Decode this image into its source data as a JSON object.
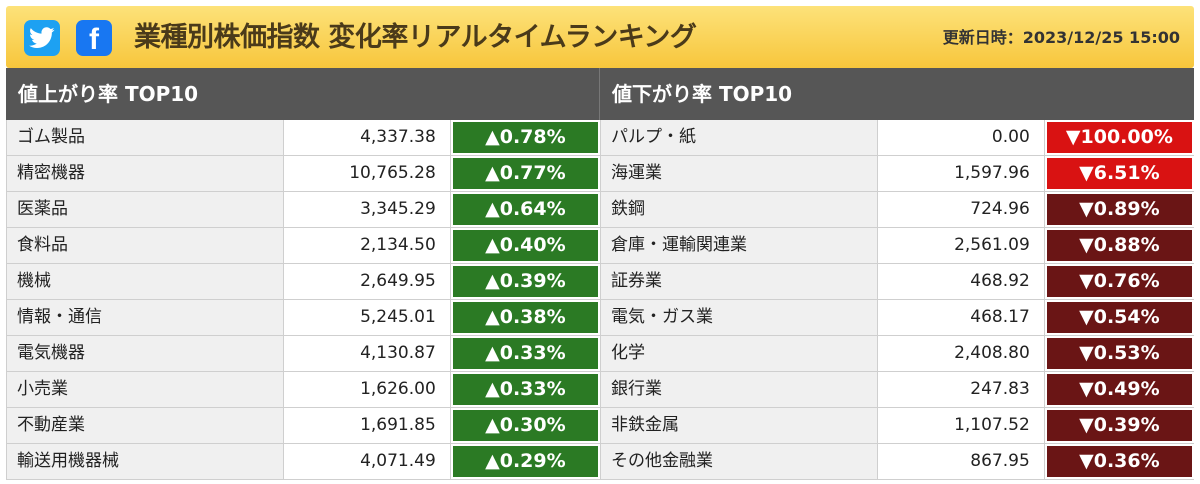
{
  "header": {
    "title": "業種別株価指数 変化率リアルタイムランキング",
    "updated": "更新日時：2023/12/25 15:00",
    "social": [
      "twitter-icon",
      "facebook-icon"
    ],
    "facebook_glyph": "f"
  },
  "gainers": {
    "title": "値上がり率 TOP10",
    "rows": [
      {
        "name": "ゴム製品",
        "value": "4,337.38",
        "change": "▲0.78%"
      },
      {
        "name": "精密機器",
        "value": "10,765.28",
        "change": "▲0.77%"
      },
      {
        "name": "医薬品",
        "value": "3,345.29",
        "change": "▲0.64%"
      },
      {
        "name": "食料品",
        "value": "2,134.50",
        "change": "▲0.40%"
      },
      {
        "name": "機械",
        "value": "2,649.95",
        "change": "▲0.39%"
      },
      {
        "name": "情報・通信",
        "value": "5,245.01",
        "change": "▲0.38%"
      },
      {
        "name": "電気機器",
        "value": "4,130.87",
        "change": "▲0.33%"
      },
      {
        "name": "小売業",
        "value": "1,626.00",
        "change": "▲0.33%"
      },
      {
        "name": "不動産業",
        "value": "1,691.85",
        "change": "▲0.30%"
      },
      {
        "name": "輸送用機器械",
        "value": "4,071.49",
        "change": "▲0.29%"
      }
    ]
  },
  "losers": {
    "title": "値下がり率 TOP10",
    "rows": [
      {
        "name": "パルプ・紙",
        "value": "0.00",
        "change": "▼100.00%"
      },
      {
        "name": "海運業",
        "value": "1,597.96",
        "change": "▼6.51%"
      },
      {
        "name": "鉄鋼",
        "value": "724.96",
        "change": "▼0.89%"
      },
      {
        "name": "倉庫・運輸関連業",
        "value": "2,561.09",
        "change": "▼0.88%"
      },
      {
        "name": "証券業",
        "value": "468.92",
        "change": "▼0.76%"
      },
      {
        "name": "電気・ガス業",
        "value": "468.17",
        "change": "▼0.54%"
      },
      {
        "name": "化学",
        "value": "2,408.80",
        "change": "▼0.53%"
      },
      {
        "name": "銀行業",
        "value": "247.83",
        "change": "▼0.49%"
      },
      {
        "name": "非鉄金属",
        "value": "1,107.52",
        "change": "▼0.39%"
      },
      {
        "name": "その他金融業",
        "value": "867.95",
        "change": "▼0.36%"
      }
    ]
  },
  "colors": {
    "header_top": "#fde27a",
    "header_bottom": "#f7c63c",
    "column_header": "#565656",
    "up": "#2b7a24",
    "down": "#6a1515",
    "down_hot": "#d91212",
    "twitter": "#1da1f2",
    "facebook": "#1877f2"
  }
}
